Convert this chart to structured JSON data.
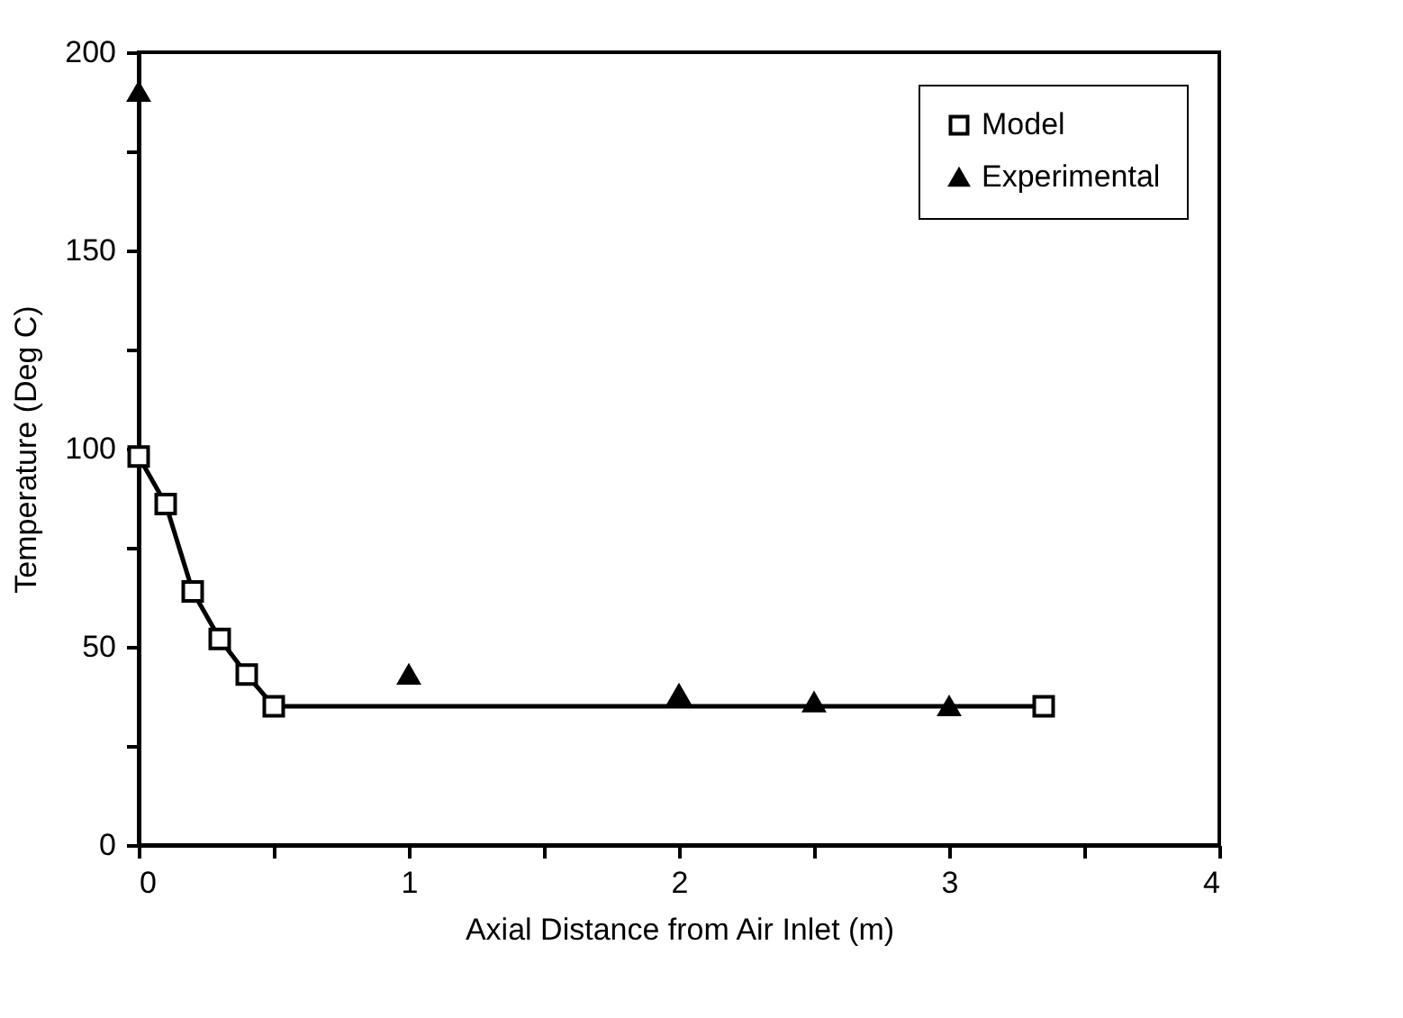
{
  "chart_data": {
    "type": "line",
    "xlabel": "Axial Distance from Air Inlet (m)",
    "ylabel": "Temperature (Deg C)",
    "xlim": [
      0,
      4
    ],
    "xticks": [
      0,
      {
        "value": 0.5,
        "label": null
      },
      1,
      {
        "value": 1.5,
        "label": null
      },
      2,
      {
        "value": 2.5,
        "label": null
      },
      3,
      {
        "value": 3.5,
        "label": null
      },
      4
    ],
    "ylim": [
      0,
      200
    ],
    "yticks": [
      0,
      {
        "value": 25,
        "label": null
      },
      50,
      {
        "value": 75,
        "label": null
      },
      100,
      {
        "value": 125,
        "label": null
      },
      150,
      {
        "value": 175,
        "label": null
      },
      200
    ],
    "legend": "top right",
    "grid": false,
    "series": [
      {
        "name": "Model",
        "marker": "square",
        "color": "#000000",
        "x": [
          0,
          0.1,
          0.2,
          0.3,
          0.4,
          0.5,
          3.35
        ],
        "values": [
          98,
          86,
          64,
          52,
          43,
          35,
          35
        ]
      },
      {
        "name": "Experimental",
        "type": "scatter",
        "marker": "triangle",
        "color": "#000000",
        "x": [
          0,
          1,
          2,
          2.5,
          3
        ],
        "values": [
          190,
          43,
          38,
          36,
          35
        ]
      }
    ]
  }
}
